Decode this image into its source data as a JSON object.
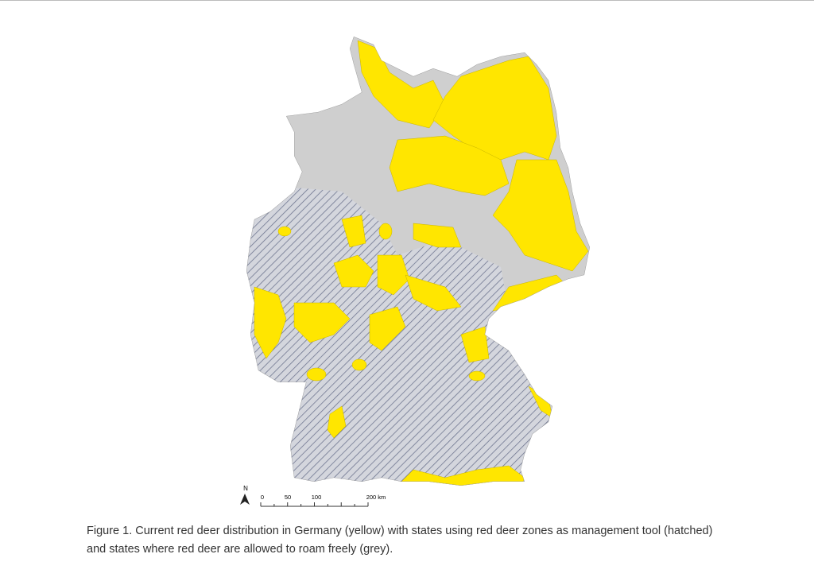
{
  "figure": {
    "north_label": "N",
    "scale_labels": [
      "0",
      "50",
      "100",
      "200 km"
    ],
    "caption_lines": [
      "Figure 1. Current red deer distribution in Germany (yellow) with states using red deer zones as management tool (hatched)",
      "and states where red deer are allowed to roam freely (grey)."
    ]
  }
}
